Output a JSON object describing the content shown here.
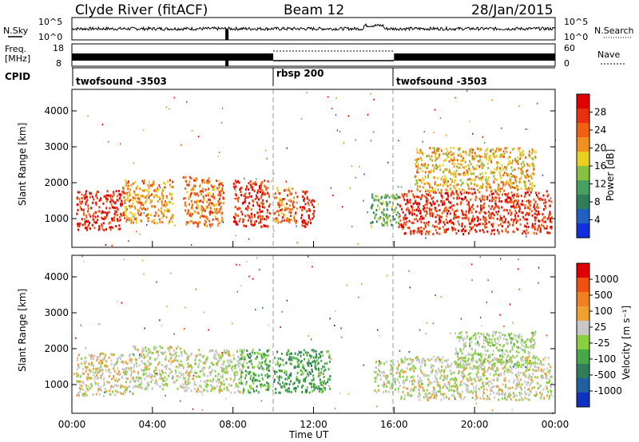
{
  "header": {
    "station": "Clyde River (fitACF)",
    "beam": "Beam 12",
    "date": "28/Jan/2015"
  },
  "noise_panel": {
    "left_label": "N.Sky",
    "right_label": "N.Search",
    "left_ticks": [
      "10^5",
      "10^0"
    ],
    "right_ticks": [
      "10^5",
      "10^0"
    ]
  },
  "freq_panel": {
    "left_label_1": "Freq.",
    "left_label_2": "[MHz]",
    "left_ticks": [
      "18",
      "8"
    ],
    "right_ticks": [
      "60",
      "0"
    ],
    "right_label": "Nave"
  },
  "cpid": {
    "label": "CPID",
    "segments": [
      {
        "name": "twofsound -3503",
        "start": 0,
        "end": 10
      },
      {
        "name": "rbsp 200",
        "start": 10,
        "end": 16
      },
      {
        "name": "twofsound -3503",
        "start": 16,
        "end": 24
      }
    ]
  },
  "colors": {
    "power_scale": [
      "#1030e0",
      "#2060c0",
      "#2f7d5a",
      "#48a060",
      "#88c040",
      "#e8d020",
      "#f09020",
      "#f06010",
      "#e83010",
      "#e00000"
    ],
    "velocity_scale": [
      "#1030c0",
      "#2060a0",
      "#2f7d5a",
      "#48a848",
      "#88d040",
      "#c8c8c8",
      "#f0a030",
      "#f08020",
      "#f05010",
      "#e00000"
    ]
  },
  "chart_data": [
    {
      "type": "heatmap",
      "name": "power",
      "ylabel": "Slant Range [km]",
      "ylim": [
        200,
        4600
      ],
      "xlim": [
        0,
        24
      ],
      "yticks": [
        "1000",
        "2000",
        "3000",
        "4000"
      ],
      "colorbar": {
        "label": "Power [dB]",
        "ticks": [
          "4",
          "8",
          "12",
          "16",
          "20",
          "24",
          "28"
        ],
        "range": [
          0,
          30
        ]
      },
      "x": [
        0,
        1,
        2,
        3,
        4,
        5,
        6,
        7,
        8,
        9,
        10,
        11,
        12,
        13,
        14,
        15,
        16,
        17,
        18,
        19,
        20,
        21,
        22,
        23
      ],
      "scatter_regions": [
        {
          "x_range": [
            0.2,
            2.5
          ],
          "y_range": [
            700,
            1800
          ],
          "value": 27
        },
        {
          "x_range": [
            2.5,
            5.0
          ],
          "y_range": [
            900,
            2100
          ],
          "value": 20
        },
        {
          "x_range": [
            5.5,
            7.5
          ],
          "y_range": [
            800,
            2200
          ],
          "value": 22
        },
        {
          "x_range": [
            8.0,
            9.8
          ],
          "y_range": [
            800,
            2100
          ],
          "value": 26
        },
        {
          "x_range": [
            10.0,
            11.2
          ],
          "y_range": [
            900,
            1900
          ],
          "value": 22
        },
        {
          "x_range": [
            11.3,
            12.0
          ],
          "y_range": [
            800,
            1800
          ],
          "value": 28
        },
        {
          "x_range": [
            14.8,
            16.2
          ],
          "y_range": [
            800,
            1700
          ],
          "value": 12
        },
        {
          "x_range": [
            16.2,
            23.8
          ],
          "y_range": [
            600,
            1800
          ],
          "value": 26
        },
        {
          "x_range": [
            17.0,
            23.0
          ],
          "y_range": [
            1800,
            3000
          ],
          "value": 18
        }
      ]
    },
    {
      "type": "heatmap",
      "name": "velocity",
      "ylabel": "Slant Range [km]",
      "xlabel": "Time UT",
      "ylim": [
        200,
        4600
      ],
      "xlim": [
        0,
        24
      ],
      "yticks": [
        "1000",
        "2000",
        "3000",
        "4000"
      ],
      "xticks": [
        "00:00",
        "04:00",
        "08:00",
        "12:00",
        "16:00",
        "20:00",
        "00:00"
      ],
      "colorbar": {
        "label": "Velocity [m s⁻¹]",
        "ticks": [
          "1000",
          "500",
          "100",
          "25",
          "-25",
          "-100",
          "-500",
          "-1000"
        ],
        "range": [
          -1200,
          1200
        ]
      },
      "scatter_regions": [
        {
          "x_range": [
            0.2,
            3.0
          ],
          "y_range": [
            700,
            1900
          ],
          "value": 150
        },
        {
          "x_range": [
            3.0,
            5.5
          ],
          "y_range": [
            900,
            2100
          ],
          "value": 80
        },
        {
          "x_range": [
            5.5,
            7.5
          ],
          "y_range": [
            800,
            2000
          ],
          "value": 60
        },
        {
          "x_range": [
            7.5,
            8.5
          ],
          "y_range": [
            800,
            2000
          ],
          "value": 40
        },
        {
          "x_range": [
            8.3,
            9.8
          ],
          "y_range": [
            800,
            2000
          ],
          "value": -300
        },
        {
          "x_range": [
            10.0,
            12.8
          ],
          "y_range": [
            800,
            2000
          ],
          "value": -400
        },
        {
          "x_range": [
            15.0,
            16.3
          ],
          "y_range": [
            800,
            1700
          ],
          "value": 50
        },
        {
          "x_range": [
            16.3,
            23.8
          ],
          "y_range": [
            600,
            1800
          ],
          "value": 80
        },
        {
          "x_range": [
            19.0,
            23.0
          ],
          "y_range": [
            1500,
            2500
          ],
          "value": -30
        }
      ]
    }
  ]
}
